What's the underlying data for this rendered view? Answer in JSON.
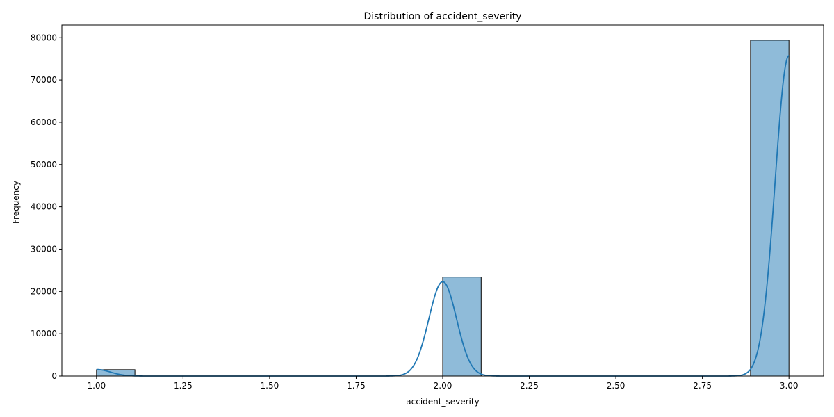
{
  "chart_data": {
    "type": "histogram",
    "title": "Distribution of accident_severity",
    "xlabel": "accident_severity",
    "ylabel": "Frequency",
    "xlim": [
      0.9,
      3.1
    ],
    "ylim": [
      0,
      83000
    ],
    "x_ticks": [
      1.0,
      1.25,
      1.5,
      1.75,
      2.0,
      2.25,
      2.5,
      2.75,
      3.0
    ],
    "x_tick_labels": [
      "1.00",
      "1.25",
      "1.50",
      "1.75",
      "2.00",
      "2.25",
      "2.50",
      "2.75",
      "3.00"
    ],
    "y_ticks": [
      0,
      10000,
      20000,
      30000,
      40000,
      50000,
      60000,
      70000,
      80000
    ],
    "y_tick_labels": [
      "0",
      "10000",
      "20000",
      "30000",
      "40000",
      "50000",
      "60000",
      "70000",
      "80000"
    ],
    "bins": [
      {
        "x0": 1.0,
        "x1": 1.111,
        "count": 1500
      },
      {
        "x0": 2.0,
        "x1": 2.111,
        "count": 23400
      },
      {
        "x0": 2.889,
        "x1": 3.0,
        "count": 79400
      }
    ],
    "kde": {
      "x_range": [
        1.0,
        3.0
      ],
      "components": [
        {
          "mean": 1.0,
          "sd": 0.04,
          "height": 1550
        },
        {
          "mean": 2.0,
          "sd": 0.04,
          "height": 22300
        },
        {
          "mean": 3.0,
          "sd": 0.04,
          "height": 75800
        }
      ]
    },
    "colors": {
      "bar_fill": "#8fbbd9",
      "bar_edge": "#000000",
      "kde_line": "#1f77b4",
      "axis": "#000000"
    },
    "grid": false
  }
}
